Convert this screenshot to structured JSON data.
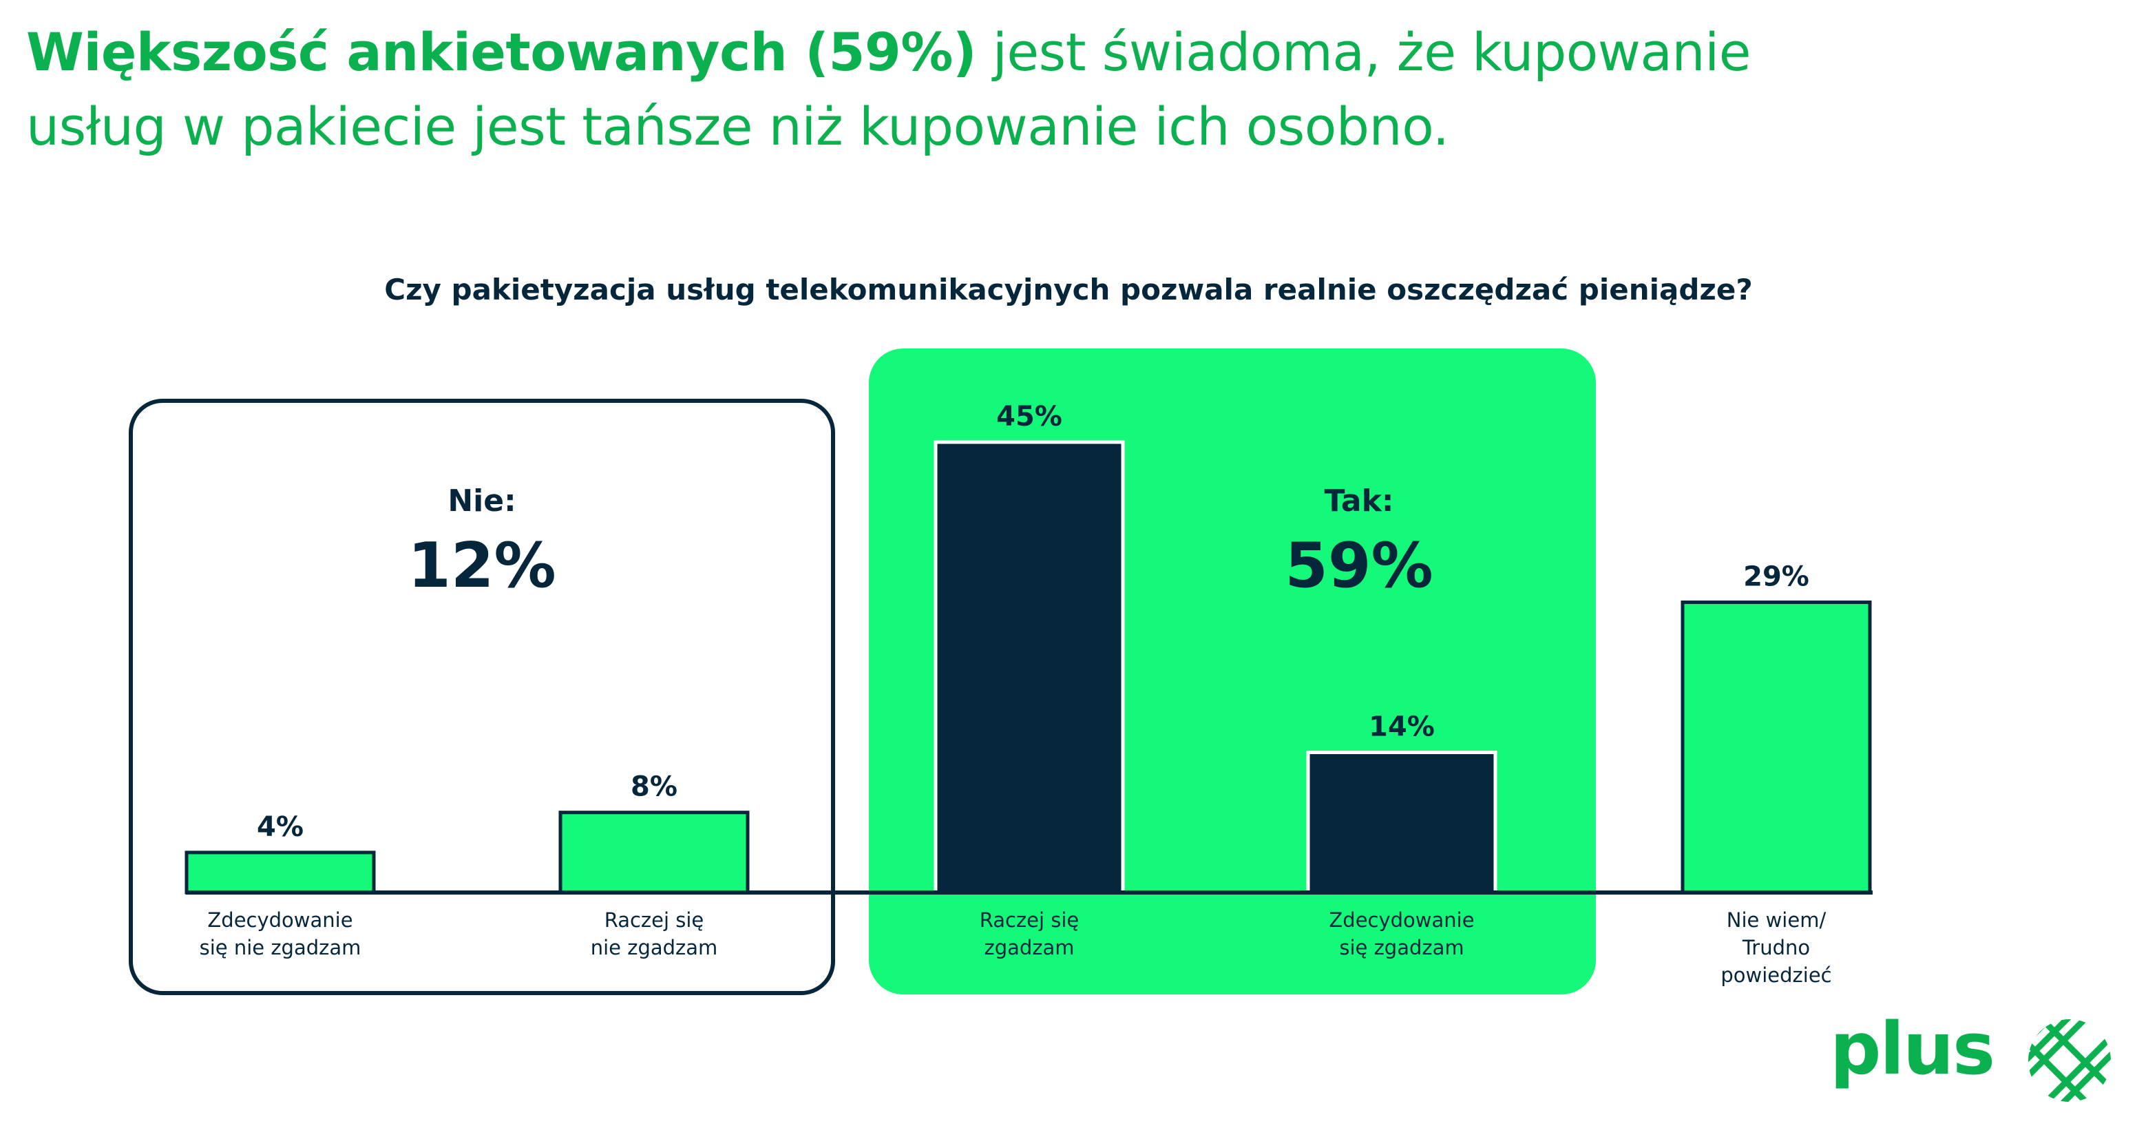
{
  "headline": {
    "bold": "Większość ankietowanych (59%)",
    "line1_rest": " jest świadoma, że kupowanie",
    "line2": "usług w pakiecie jest tańsze niż kupowanie ich osobno."
  },
  "question": "Czy pakietyzacja usług telekomunikacyjnych pozwala realnie oszczędzać pieniądze?",
  "groups": {
    "nie": {
      "label": "Nie:",
      "total": "12%"
    },
    "tak": {
      "label": "Tak:",
      "total": "59%"
    }
  },
  "colors": {
    "accent_green": "#15f97a",
    "brand_green": "#0bb14f",
    "navy": "#05263b"
  },
  "chart_data": {
    "type": "bar",
    "title": "Czy pakietyzacja usług telekomunikacyjnych pozwala realnie oszczędzać pieniądze?",
    "categories": [
      [
        "Zdecydowanie",
        "się nie zgadzam"
      ],
      [
        "Raczej się",
        "nie zgadzam"
      ],
      [
        "Raczej się",
        "zgadzam"
      ],
      [
        "Zdecydowanie",
        "się zgadzam"
      ],
      [
        "Nie wiem/",
        "Trudno",
        "powiedzieć"
      ]
    ],
    "values": [
      4,
      8,
      45,
      14,
      29
    ],
    "value_labels": [
      "4%",
      "8%",
      "45%",
      "14%",
      "29%"
    ],
    "bar_colors": [
      "#15f97a",
      "#15f97a",
      "#05263b",
      "#05263b",
      "#15f97a"
    ],
    "ylim": [
      0,
      45
    ],
    "xlabel": "",
    "ylabel": "",
    "grid": false
  },
  "logo": {
    "text": "plus",
    "icon": "plus-logo-icon"
  }
}
